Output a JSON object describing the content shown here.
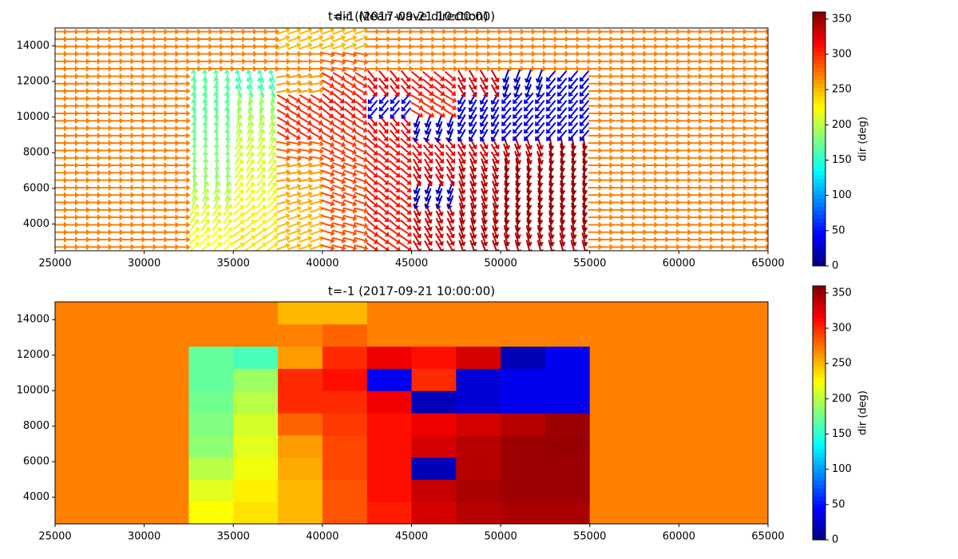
{
  "chart_data": [
    {
      "type": "quiver",
      "titles": [
        "t=-1 (2017-09-21 10:00:00)",
        "dir (Mean wave direction)"
      ],
      "x": [
        25000,
        27500,
        30000,
        32500,
        35000,
        37500,
        40000,
        42500,
        45000,
        47500,
        50000,
        52500,
        55000,
        57500,
        60000,
        62500,
        65000
      ],
      "y": [
        2500,
        3750,
        5000,
        6250,
        7500,
        8750,
        10000,
        11250,
        12500,
        13750,
        15000
      ],
      "values": [
        [
          270,
          270,
          270,
          225,
          235,
          250,
          285,
          305,
          330,
          340,
          345,
          345,
          270,
          270,
          270,
          270
        ],
        [
          270,
          270,
          270,
          215,
          230,
          250,
          285,
          310,
          335,
          345,
          350,
          350,
          270,
          270,
          270,
          270
        ],
        [
          270,
          270,
          270,
          200,
          220,
          255,
          290,
          310,
          20,
          340,
          350,
          350,
          270,
          270,
          270,
          270
        ],
        [
          270,
          270,
          270,
          185,
          215,
          260,
          290,
          310,
          330,
          340,
          350,
          352,
          270,
          270,
          270,
          270
        ],
        [
          270,
          270,
          270,
          180,
          210,
          280,
          295,
          310,
          320,
          330,
          340,
          350,
          270,
          270,
          270,
          270
        ],
        [
          270,
          270,
          270,
          175,
          200,
          300,
          300,
          320,
          20,
          30,
          40,
          40,
          270,
          270,
          270,
          270
        ],
        [
          270,
          270,
          270,
          170,
          190,
          300,
          310,
          40,
          300,
          30,
          40,
          40,
          270,
          270,
          270,
          270
        ],
        [
          270,
          270,
          270,
          170,
          160,
          260,
          300,
          320,
          310,
          330,
          20,
          40,
          270,
          270,
          270,
          270
        ],
        [
          270,
          270,
          270,
          270,
          270,
          270,
          280,
          270,
          270,
          270,
          270,
          270,
          270,
          270,
          270,
          270
        ],
        [
          270,
          270,
          270,
          270,
          270,
          250,
          250,
          270,
          270,
          270,
          270,
          270,
          270,
          270,
          270,
          270
        ]
      ],
      "xlim": [
        25000,
        65000
      ],
      "ylim": [
        2500,
        15000
      ],
      "xticks": [
        25000,
        30000,
        35000,
        40000,
        45000,
        50000,
        55000,
        60000,
        65000
      ],
      "yticks": [
        4000,
        6000,
        8000,
        10000,
        12000,
        14000
      ],
      "colormap": "jet",
      "clim": [
        0,
        360
      ],
      "cticks": [
        0,
        50,
        100,
        150,
        200,
        250,
        300,
        350
      ],
      "clabel": "dir (deg)"
    },
    {
      "type": "heatmap",
      "titles": [
        "t=-1 (2017-09-21 10:00:00)"
      ],
      "x": [
        25000,
        27500,
        30000,
        32500,
        35000,
        37500,
        40000,
        42500,
        45000,
        47500,
        50000,
        52500,
        55000,
        57500,
        60000,
        62500,
        65000
      ],
      "y": [
        2500,
        3750,
        5000,
        6250,
        7500,
        8750,
        10000,
        11250,
        12500,
        13750,
        15000
      ],
      "values": [
        [
          270,
          270,
          270,
          225,
          235,
          250,
          285,
          305,
          330,
          340,
          345,
          345,
          270,
          270,
          270,
          270
        ],
        [
          270,
          270,
          270,
          215,
          230,
          250,
          285,
          310,
          335,
          345,
          350,
          350,
          270,
          270,
          270,
          270
        ],
        [
          270,
          270,
          270,
          200,
          220,
          255,
          290,
          310,
          20,
          340,
          350,
          350,
          270,
          270,
          270,
          270
        ],
        [
          270,
          270,
          270,
          185,
          215,
          260,
          290,
          310,
          330,
          340,
          350,
          352,
          270,
          270,
          270,
          270
        ],
        [
          270,
          270,
          270,
          180,
          210,
          280,
          295,
          310,
          320,
          330,
          340,
          350,
          270,
          270,
          270,
          270
        ],
        [
          270,
          270,
          270,
          175,
          200,
          300,
          300,
          320,
          20,
          30,
          40,
          40,
          270,
          270,
          270,
          270
        ],
        [
          270,
          270,
          270,
          170,
          190,
          300,
          310,
          40,
          300,
          30,
          40,
          40,
          270,
          270,
          270,
          270
        ],
        [
          270,
          270,
          270,
          170,
          160,
          260,
          300,
          320,
          310,
          330,
          20,
          40,
          270,
          270,
          270,
          270
        ],
        [
          270,
          270,
          270,
          270,
          270,
          270,
          280,
          270,
          270,
          270,
          270,
          270,
          270,
          270,
          270,
          270
        ],
        [
          270,
          270,
          270,
          270,
          270,
          250,
          250,
          270,
          270,
          270,
          270,
          270,
          270,
          270,
          270,
          270
        ]
      ],
      "xlim": [
        25000,
        65000
      ],
      "ylim": [
        2500,
        15000
      ],
      "xticks": [
        25000,
        30000,
        35000,
        40000,
        45000,
        50000,
        55000,
        60000,
        65000
      ],
      "yticks": [
        4000,
        6000,
        8000,
        10000,
        12000,
        14000
      ],
      "colormap": "jet",
      "clim": [
        0,
        360
      ],
      "cticks": [
        0,
        50,
        100,
        150,
        200,
        250,
        300,
        350
      ],
      "clabel": "dir (deg)"
    }
  ]
}
